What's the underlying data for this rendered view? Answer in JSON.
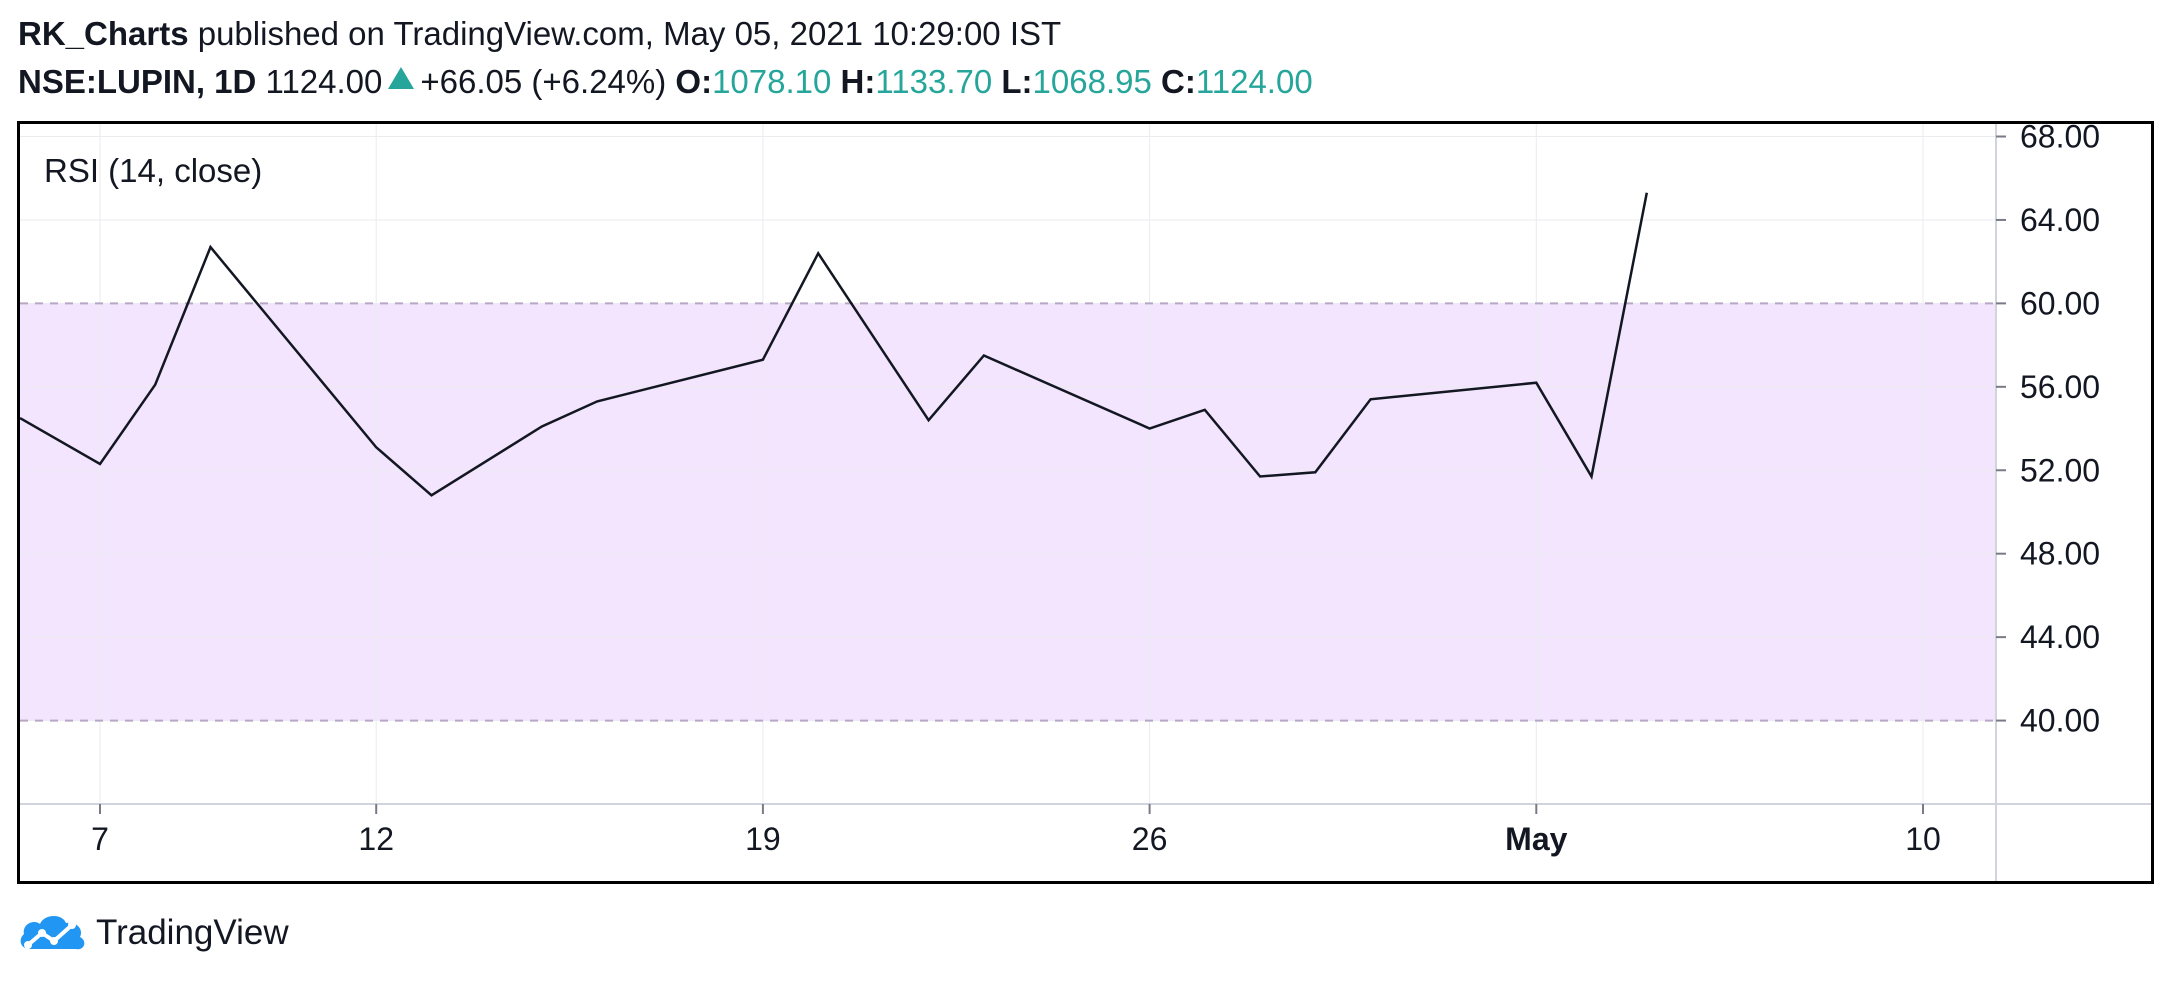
{
  "header": {
    "author": "RK_Charts",
    "published_text": "published on TradingView.com, May 05, 2021 10:29:00 IST",
    "symbol": "NSE:LUPIN, 1D",
    "price": "1124.00",
    "change": "+66.05 (+6.24%)",
    "open_label": "O:",
    "open": "1078.10",
    "high_label": "H:",
    "high": "1133.70",
    "low_label": "L:",
    "low": "1068.95",
    "close_label": "C:",
    "close": "1124.00",
    "up_icon": "triangle-up-icon"
  },
  "colors": {
    "up": "#26a69a",
    "line": "#131722",
    "band_fill": "#f3e5fd",
    "band_line": "#b8a7c4",
    "grid": "#ebebf0"
  },
  "chart_data": {
    "type": "line",
    "indicator_label": "RSI (14, close)",
    "ylim": [
      36.0,
      68.6
    ],
    "yticks": [
      "40.00",
      "44.00",
      "48.00",
      "52.00",
      "56.00",
      "60.00",
      "64.00",
      "68.00"
    ],
    "x_tick_labels": [
      "7",
      "12",
      "19",
      "26",
      "May",
      "10"
    ],
    "x_tick_dates": [
      "2021-04-07",
      "2021-04-12",
      "2021-04-19",
      "2021-04-26",
      "2021-05-03",
      "2021-05-10"
    ],
    "band": {
      "lower": 40,
      "upper": 60
    },
    "series": [
      {
        "x": [
          "2021-04-05",
          "2021-04-07",
          "2021-04-08",
          "2021-04-09",
          "2021-04-12",
          "2021-04-13",
          "2021-04-15",
          "2021-04-16",
          "2021-04-19",
          "2021-04-20",
          "2021-04-22",
          "2021-04-23",
          "2021-04-26",
          "2021-04-27",
          "2021-04-28",
          "2021-04-29",
          "2021-04-30",
          "2021-05-03",
          "2021-05-04",
          "2021-05-05"
        ],
        "values": [
          54.5,
          52.3,
          56.1,
          62.7,
          53.1,
          50.8,
          54.1,
          55.3,
          57.3,
          62.4,
          54.4,
          57.5,
          54.0,
          54.9,
          51.7,
          51.9,
          55.4,
          56.2,
          51.7,
          65.3
        ]
      }
    ]
  },
  "footer": {
    "brand": "TradingView",
    "logo_icon": "tradingview-cloud-logo-icon"
  }
}
